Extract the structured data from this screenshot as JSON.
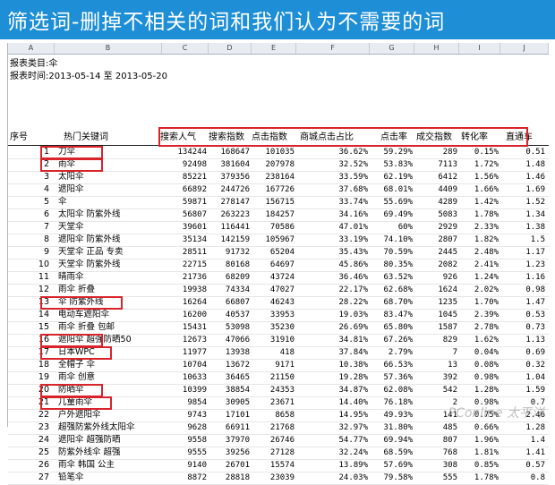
{
  "banner": {
    "title": "筛选词-删掉不相关的词和我们认为不需要的词"
  },
  "sheet": {
    "column_letters": [
      "A",
      "B",
      "C",
      "D",
      "E",
      "F",
      "G",
      "H",
      "I",
      "J"
    ],
    "report_category": "报表类目:伞",
    "report_time": "报表时间:2013-05-14 至 2013-05-20",
    "headers": [
      "序号",
      "热门关键词",
      "搜索人气",
      "搜索指数",
      "点击指数",
      "商城点击占比",
      "点击率",
      "成交指数",
      "转化率",
      "直通车"
    ],
    "rows": [
      [
        "1",
        "刀伞",
        "134244",
        "168647",
        "101035",
        "36.62%",
        "59.29%",
        "289",
        "0.15%",
        "0.51"
      ],
      [
        "2",
        "雨伞",
        "92498",
        "381604",
        "207978",
        "32.52%",
        "53.83%",
        "7113",
        "1.72%",
        "1.48"
      ],
      [
        "3",
        "太阳伞",
        "85221",
        "379356",
        "238164",
        "33.59%",
        "62.19%",
        "6412",
        "1.56%",
        "1.46"
      ],
      [
        "4",
        "遮阳伞",
        "66892",
        "244726",
        "167726",
        "37.68%",
        "68.01%",
        "4409",
        "1.66%",
        "1.69"
      ],
      [
        "5",
        "伞",
        "59871",
        "278147",
        "156715",
        "33.74%",
        "55.69%",
        "4289",
        "1.42%",
        "1.52"
      ],
      [
        "6",
        "太阳伞 防紫外线",
        "56807",
        "263223",
        "184257",
        "34.16%",
        "69.49%",
        "5083",
        "1.78%",
        "1.34"
      ],
      [
        "7",
        "天堂伞",
        "39601",
        "116441",
        "70586",
        "47.01%",
        "60%",
        "2929",
        "2.33%",
        "1.38"
      ],
      [
        "8",
        "遮阳伞 防紫外线",
        "35134",
        "142159",
        "105967",
        "33.19%",
        "74.10%",
        "2807",
        "1.82%",
        "1.5"
      ],
      [
        "9",
        "天堂伞 正品 专卖",
        "28511",
        "91732",
        "65204",
        "35.43%",
        "70.59%",
        "2445",
        "2.48%",
        "1.17"
      ],
      [
        "10",
        "天堂伞 防紫外线",
        "22715",
        "80168",
        "64697",
        "45.86%",
        "80.35%",
        "2082",
        "2.41%",
        "1.23"
      ],
      [
        "11",
        "晴雨伞",
        "21736",
        "68209",
        "43724",
        "36.46%",
        "63.52%",
        "926",
        "1.24%",
        "1.16"
      ],
      [
        "12",
        "雨伞 折叠",
        "19938",
        "74334",
        "47027",
        "22.17%",
        "62.68%",
        "1624",
        "2.02%",
        "0.98"
      ],
      [
        "13",
        "伞 防紫外线",
        "16264",
        "66807",
        "46243",
        "28.22%",
        "68.70%",
        "1235",
        "1.70%",
        "1.47"
      ],
      [
        "14",
        "电动车遮阳伞",
        "16200",
        "40537",
        "33953",
        "19.03%",
        "83.47%",
        "1045",
        "2.39%",
        "0.53"
      ],
      [
        "15",
        "雨伞 折叠 包邮",
        "15431",
        "53098",
        "35230",
        "26.69%",
        "65.80%",
        "1587",
        "2.78%",
        "0.73"
      ],
      [
        "16",
        "遮阳伞 超强防晒50",
        "12673",
        "47066",
        "31910",
        "34.81%",
        "67.26%",
        "829",
        "1.62%",
        "1.13"
      ],
      [
        "17",
        "日本WPC",
        "11977",
        "13938",
        "418",
        "37.84%",
        "2.79%",
        "7",
        "0.04%",
        "0.69"
      ],
      [
        "18",
        "全帽子 伞",
        "10704",
        "13672",
        "9171",
        "10.38%",
        "66.53%",
        "13",
        "0.08%",
        "0.32"
      ],
      [
        "19",
        "雨伞 创意",
        "10633",
        "36465",
        "21150",
        "19.28%",
        "57.36%",
        "392",
        "0.98%",
        "1.04"
      ],
      [
        "20",
        "防晒伞",
        "10399",
        "38854",
        "24353",
        "34.87%",
        "62.08%",
        "542",
        "1.28%",
        "1.59"
      ],
      [
        "21",
        "儿童雨伞",
        "9854",
        "30905",
        "23671",
        "14.40%",
        "76.18%",
        "2",
        "0.98%",
        "0.7"
      ],
      [
        "22",
        "户外遮阳伞",
        "9743",
        "17101",
        "8658",
        "14.95%",
        "49.93%",
        "141",
        "0.75%",
        "2.46"
      ],
      [
        "23",
        "超强防紫外线太阳伞",
        "9628",
        "66911",
        "21768",
        "32.97%",
        "31.80%",
        "485",
        "0.66%",
        "1.28"
      ],
      [
        "24",
        "遮阳伞 超强防晒",
        "9558",
        "37970",
        "26746",
        "54.77%",
        "69.94%",
        "807",
        "1.96%",
        "1.4"
      ],
      [
        "25",
        "防紫外线伞 超强",
        "9555",
        "39256",
        "27128",
        "32.24%",
        "68.59%",
        "768",
        "1.81%",
        "1.41"
      ],
      [
        "26",
        "雨伞 韩国 公主",
        "9140",
        "26701",
        "15574",
        "13.89%",
        "57.69%",
        "308",
        "0.85%",
        "0.57"
      ],
      [
        "27",
        "铅笔伞",
        "8872",
        "28818",
        "23039",
        "24.03%",
        "79.58%",
        "555",
        "1.78%",
        "0.8"
      ]
    ]
  },
  "watermark": "PConline 太平洋",
  "colors": {
    "banner": "#1e8fd6",
    "highlight": "#d8232a"
  }
}
